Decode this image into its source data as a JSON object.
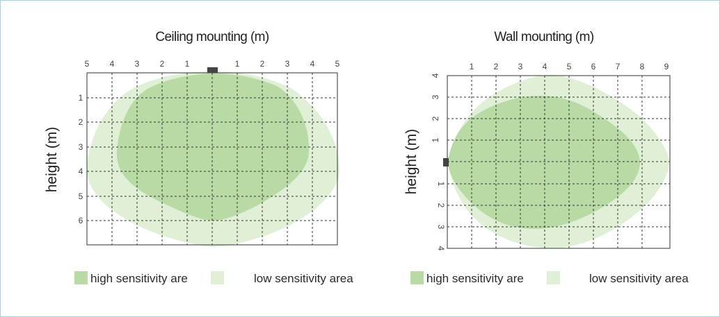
{
  "colors": {
    "high_area": "#b8dba6",
    "low_area": "#e0f0d7",
    "frame_border": "#a7d3de",
    "sensor": "#444444",
    "grid": "#333333"
  },
  "ceiling": {
    "title": "Ceiling mounting (m)",
    "ylabel": "height (m)",
    "x_ticks": [
      "5",
      "4",
      "3",
      "2",
      "1",
      "",
      "1",
      "2",
      "3",
      "4",
      "5"
    ],
    "y_ticks": [
      "1",
      "2",
      "3",
      "4",
      "5",
      "6"
    ],
    "sensor_icon": "sensor-icon"
  },
  "wall": {
    "title": "Wall mounting (m)",
    "ylabel": "height (m)",
    "x_ticks": [
      "1",
      "2",
      "3",
      "4",
      "5",
      "6",
      "7",
      "8",
      "9"
    ],
    "y_ticks_top": [
      "4",
      "3",
      "2",
      "1"
    ],
    "y_ticks_bottom": [
      "1",
      "2",
      "3",
      "4"
    ],
    "sensor_icon": "sensor-icon"
  },
  "legend": {
    "high": "high sensitivity are",
    "low": "low sensitivity area"
  }
}
